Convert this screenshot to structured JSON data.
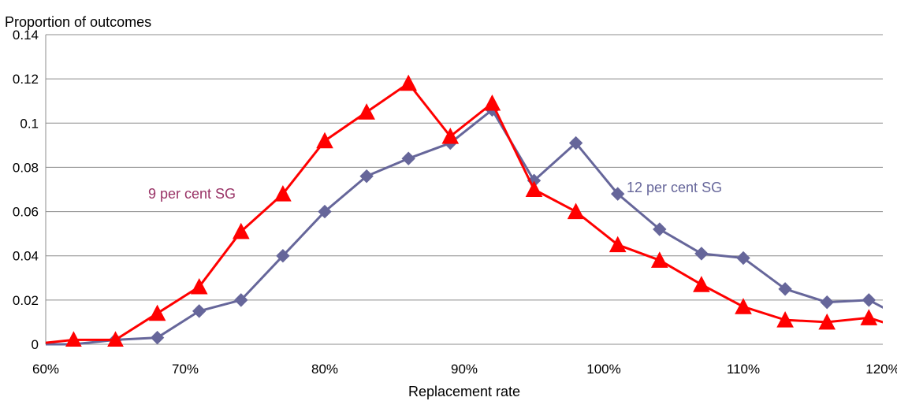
{
  "chart_data": {
    "type": "line",
    "title": "",
    "ylabel": "Proportion of outcomes",
    "xlabel": "Replacement rate",
    "xlim": [
      0.6,
      1.2
    ],
    "ylim": [
      0,
      0.14
    ],
    "x_ticks": [
      0.6,
      0.7,
      0.8,
      0.9,
      1.0,
      1.1,
      1.2
    ],
    "x_tick_labels": [
      "60%",
      "70%",
      "80%",
      "90%",
      "100%",
      "110%",
      "120%"
    ],
    "y_ticks": [
      0,
      0.02,
      0.04,
      0.06,
      0.08,
      0.1,
      0.12,
      0.14
    ],
    "y_tick_labels": [
      "0",
      "0.02",
      "0.04",
      "0.06",
      "0.08",
      "0.1",
      "0.12",
      "0.14"
    ],
    "grid": "horizontal",
    "series": [
      {
        "name": "12 per cent SG",
        "color": "#66669a",
        "marker": "diamond",
        "label_text": "12 per cent SG",
        "x": [
          0.59,
          0.62,
          0.65,
          0.68,
          0.71,
          0.74,
          0.77,
          0.8,
          0.83,
          0.86,
          0.89,
          0.92,
          0.95,
          0.98,
          1.01,
          1.04,
          1.07,
          1.1,
          1.13,
          1.16,
          1.19,
          1.22
        ],
        "y": [
          0.0,
          0.0,
          0.002,
          0.003,
          0.015,
          0.02,
          0.04,
          0.06,
          0.076,
          0.084,
          0.091,
          0.106,
          0.074,
          0.091,
          0.068,
          0.052,
          0.041,
          0.039,
          0.025,
          0.019,
          0.02,
          0.01
        ]
      },
      {
        "name": "9 per cent SG",
        "color": "#ff0000",
        "marker": "triangle",
        "label_text": "9 per cent SG",
        "label_color": "#993366",
        "x": [
          0.59,
          0.62,
          0.65,
          0.68,
          0.71,
          0.74,
          0.77,
          0.8,
          0.83,
          0.86,
          0.89,
          0.92,
          0.95,
          0.98,
          1.01,
          1.04,
          1.07,
          1.1,
          1.13,
          1.16,
          1.19,
          1.22
        ],
        "y": [
          0.0,
          0.002,
          0.002,
          0.014,
          0.026,
          0.051,
          0.068,
          0.092,
          0.105,
          0.118,
          0.094,
          0.109,
          0.07,
          0.06,
          0.045,
          0.038,
          0.027,
          0.017,
          0.011,
          0.01,
          0.012,
          0.006
        ]
      }
    ]
  }
}
